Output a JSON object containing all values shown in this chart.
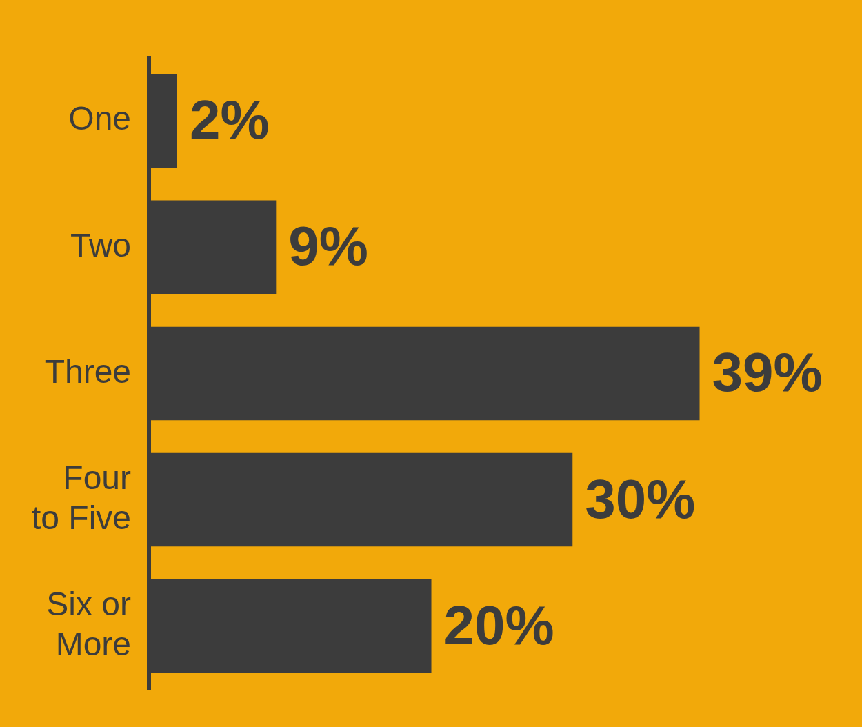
{
  "chart_data": {
    "type": "bar",
    "orientation": "horizontal",
    "categories": [
      "One",
      "Two",
      "Three",
      "Four to Five",
      "Six or More"
    ],
    "values": [
      2,
      9,
      39,
      30,
      20
    ],
    "value_labels": [
      "2%",
      "9%",
      "39%",
      "30%",
      "20%"
    ],
    "color": "#3c3c3c",
    "grid": false,
    "legend": false,
    "tick_labels": "y"
  }
}
